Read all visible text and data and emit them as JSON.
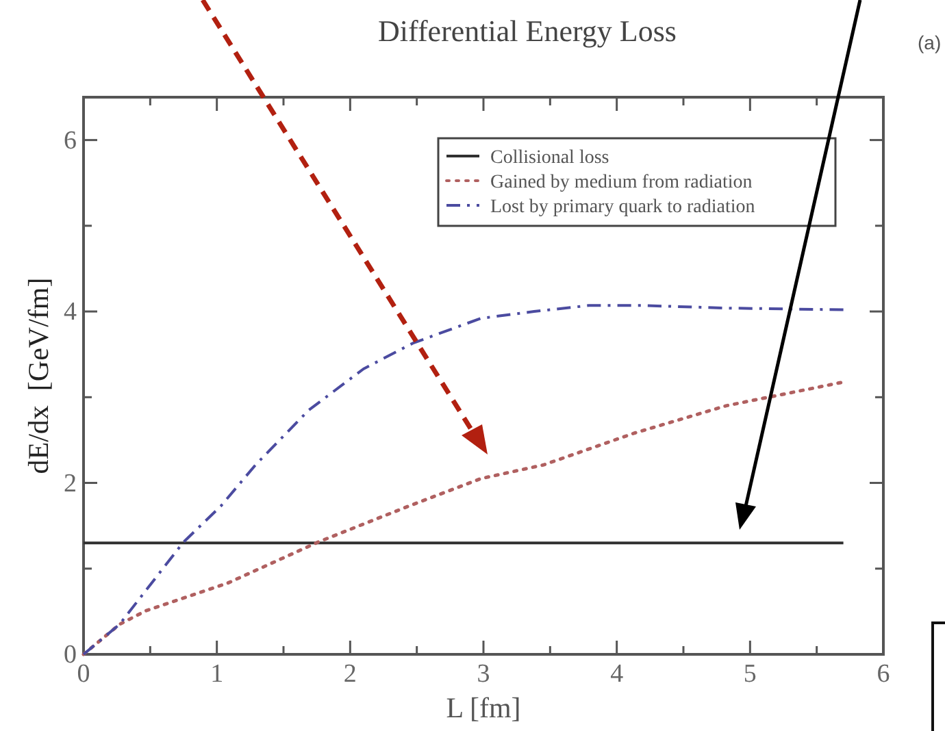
{
  "chart_data": {
    "type": "line",
    "title": "Differential Energy Loss",
    "xlabel": "L [fm]",
    "ylabel": "dE/dx  [GeV/fm]",
    "xlim": [
      0,
      6
    ],
    "ylim": [
      0,
      6.5
    ],
    "xticks": [
      0,
      {
        "value": 0.5,
        "label": null
      },
      1,
      {
        "value": 1.5,
        "label": null
      },
      2,
      {
        "value": 2.5,
        "label": null
      },
      3,
      {
        "value": 3.5,
        "label": null
      },
      4,
      {
        "value": 4.5,
        "label": null
      },
      5,
      {
        "value": 5.5,
        "label": null
      },
      6
    ],
    "yticks": [
      0,
      {
        "value": 1,
        "label": null
      },
      2,
      {
        "value": 3,
        "label": null
      },
      4,
      {
        "value": 5,
        "label": null
      },
      6
    ],
    "grid": false,
    "legend": "top right",
    "marker": "none",
    "annotations": [
      "(a)"
    ],
    "series": [
      {
        "name": "Collisional loss",
        "color": "#303030",
        "line_style": "solid",
        "x": [
          0,
          5.7
        ],
        "values": [
          1.3,
          1.3
        ]
      },
      {
        "name": "Gained by medium from radiation",
        "color": "#b06060",
        "line_style": "dotted",
        "x": [
          0,
          0.27,
          0.47,
          1.08,
          1.76,
          2.44,
          2.98,
          3.45,
          4.13,
          4.82,
          5.68
        ],
        "values": [
          0,
          0.35,
          0.51,
          0.83,
          1.31,
          1.73,
          2.05,
          2.21,
          2.58,
          2.9,
          3.17
        ]
      },
      {
        "name": "Lost by primary quark to radiation",
        "color": "#4b4ba0",
        "line_style": "dashdot",
        "x": [
          0,
          0.27,
          0.75,
          1.03,
          1.29,
          1.69,
          2.1,
          2.47,
          2.98,
          3.38,
          3.79,
          4.2,
          4.82,
          5.7
        ],
        "values": [
          0,
          0.35,
          1.31,
          1.73,
          2.21,
          2.85,
          3.33,
          3.63,
          3.92,
          4.0,
          4.07,
          4.07,
          4.04,
          4.02
        ]
      }
    ]
  }
}
